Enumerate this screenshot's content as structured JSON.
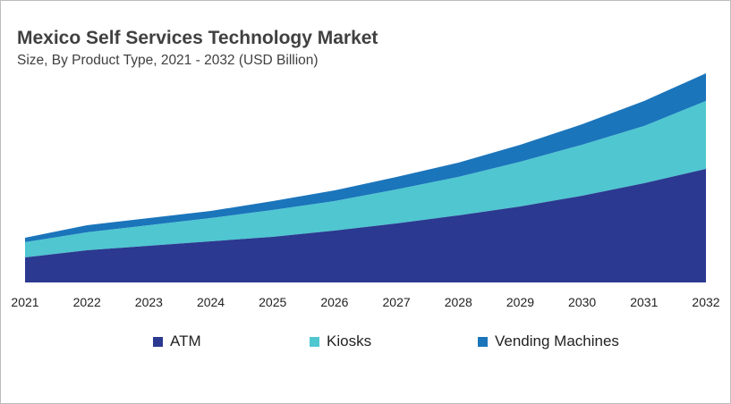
{
  "chart_data": {
    "type": "area",
    "stacked": true,
    "title": "Mexico Self Services Technology Market",
    "subtitle": "Size, By Product Type, 2021 - 2032 (USD Billion)",
    "categories": [
      "2021",
      "2022",
      "2023",
      "2024",
      "2025",
      "2026",
      "2027",
      "2028",
      "2029",
      "2030",
      "2031",
      "2032"
    ],
    "series": [
      {
        "name": "ATM",
        "color": "#2b3990",
        "values": [
          0.28,
          0.36,
          0.41,
          0.46,
          0.51,
          0.58,
          0.66,
          0.75,
          0.85,
          0.97,
          1.11,
          1.27
        ]
      },
      {
        "name": "Kiosks",
        "color": "#4fc6d0",
        "values": [
          0.17,
          0.2,
          0.23,
          0.26,
          0.3,
          0.33,
          0.38,
          0.43,
          0.5,
          0.57,
          0.64,
          0.76
        ]
      },
      {
        "name": "Vending Machines",
        "color": "#1b75bb",
        "values": [
          0.05,
          0.08,
          0.08,
          0.08,
          0.1,
          0.12,
          0.14,
          0.16,
          0.19,
          0.23,
          0.28,
          0.31
        ]
      }
    ],
    "ylim": [
      0,
      2.4
    ],
    "y_axis_visible": false,
    "grid": false,
    "legend_position": "bottom"
  }
}
